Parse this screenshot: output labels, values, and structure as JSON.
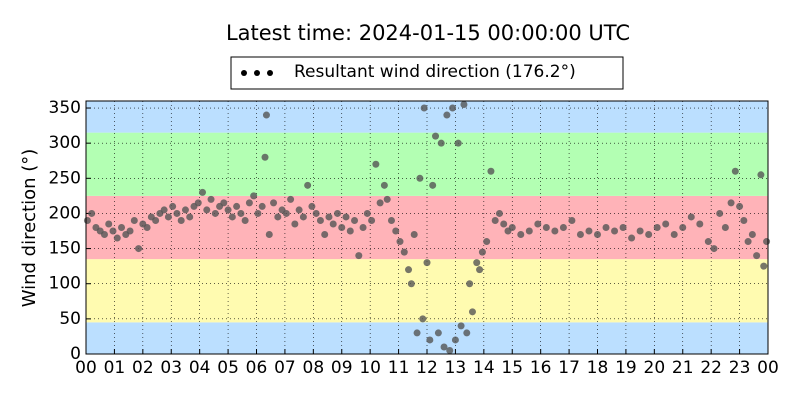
{
  "chart_data": {
    "type": "scatter",
    "title": "Latest time: 2024-01-15 00:00:00 UTC",
    "ylabel": "Wind direction (°)",
    "xlim": [
      0,
      24
    ],
    "ylim": [
      0,
      360
    ],
    "xticks": [
      {
        "value": 0,
        "label": "00"
      },
      {
        "value": 1,
        "label": "01"
      },
      {
        "value": 2,
        "label": "02"
      },
      {
        "value": 3,
        "label": "03"
      },
      {
        "value": 4,
        "label": "04"
      },
      {
        "value": 5,
        "label": "05"
      },
      {
        "value": 6,
        "label": "06"
      },
      {
        "value": 7,
        "label": "07"
      },
      {
        "value": 8,
        "label": "08"
      },
      {
        "value": 9,
        "label": "09"
      },
      {
        "value": 10,
        "label": "10"
      },
      {
        "value": 11,
        "label": "11"
      },
      {
        "value": 12,
        "label": "12"
      },
      {
        "value": 13,
        "label": "13"
      },
      {
        "value": 14,
        "label": "14"
      },
      {
        "value": 15,
        "label": "15"
      },
      {
        "value": 16,
        "label": "16"
      },
      {
        "value": 17,
        "label": "17"
      },
      {
        "value": 18,
        "label": "18"
      },
      {
        "value": 19,
        "label": "19"
      },
      {
        "value": 20,
        "label": "20"
      },
      {
        "value": 21,
        "label": "21"
      },
      {
        "value": 22,
        "label": "22"
      },
      {
        "value": 23,
        "label": "23"
      },
      {
        "value": 24,
        "label": "00"
      }
    ],
    "yticks": [
      0,
      50,
      100,
      150,
      200,
      250,
      300,
      350
    ],
    "grid": true,
    "bands": [
      {
        "from": 0,
        "to": 45,
        "color": "#bbdfff"
      },
      {
        "from": 45,
        "to": 135,
        "color": "#fffbb0"
      },
      {
        "from": 135,
        "to": 225,
        "color": "#ffb3b8"
      },
      {
        "from": 225,
        "to": 315,
        "color": "#b3ffb3"
      },
      {
        "from": 315,
        "to": 360,
        "color": "#bbdfff"
      }
    ],
    "series": [
      {
        "name": "Resultant wind direction (176.2°)",
        "color": "#555555",
        "x": [
          0.05,
          0.2,
          0.35,
          0.5,
          0.65,
          0.8,
          0.95,
          1.1,
          1.25,
          1.4,
          1.55,
          1.7,
          1.85,
          2.0,
          2.15,
          2.3,
          2.45,
          2.6,
          2.75,
          2.9,
          3.05,
          3.2,
          3.35,
          3.5,
          3.65,
          3.8,
          3.95,
          4.1,
          4.25,
          4.4,
          4.55,
          4.7,
          4.85,
          5.0,
          5.15,
          5.3,
          5.45,
          5.6,
          5.75,
          5.9,
          6.05,
          6.2,
          6.3,
          6.35,
          6.45,
          6.6,
          6.75,
          6.9,
          7.05,
          7.2,
          7.35,
          7.5,
          7.65,
          7.8,
          7.95,
          8.1,
          8.25,
          8.4,
          8.55,
          8.7,
          8.85,
          9.0,
          9.15,
          9.3,
          9.45,
          9.6,
          9.75,
          9.9,
          10.05,
          10.2,
          10.35,
          10.5,
          10.6,
          10.75,
          10.9,
          11.05,
          11.2,
          11.35,
          11.45,
          11.55,
          11.65,
          11.75,
          11.85,
          11.9,
          12.0,
          12.1,
          12.2,
          12.3,
          12.4,
          12.5,
          12.6,
          12.7,
          12.8,
          12.9,
          13.0,
          13.1,
          13.2,
          13.3,
          13.4,
          13.5,
          13.6,
          13.75,
          13.85,
          13.95,
          14.1,
          14.25,
          14.4,
          14.55,
          14.7,
          14.85,
          15.0,
          15.3,
          15.6,
          15.9,
          16.2,
          16.5,
          16.8,
          17.1,
          17.4,
          17.7,
          18.0,
          18.3,
          18.6,
          18.9,
          19.2,
          19.5,
          19.8,
          20.1,
          20.4,
          20.7,
          21.0,
          21.3,
          21.6,
          21.9,
          22.1,
          22.3,
          22.5,
          22.7,
          22.85,
          23.0,
          23.15,
          23.3,
          23.45,
          23.6,
          23.75,
          23.85,
          23.95
        ],
        "values": [
          190,
          200,
          180,
          175,
          170,
          185,
          175,
          165,
          180,
          170,
          175,
          190,
          150,
          185,
          180,
          195,
          190,
          200,
          205,
          195,
          210,
          200,
          190,
          205,
          195,
          210,
          215,
          230,
          205,
          220,
          200,
          210,
          215,
          205,
          195,
          210,
          200,
          190,
          215,
          225,
          200,
          210,
          280,
          340,
          170,
          215,
          195,
          205,
          200,
          220,
          185,
          205,
          195,
          240,
          210,
          200,
          190,
          170,
          195,
          185,
          200,
          180,
          195,
          175,
          190,
          140,
          180,
          200,
          190,
          270,
          215,
          240,
          220,
          190,
          175,
          160,
          145,
          120,
          100,
          170,
          30,
          250,
          50,
          350,
          130,
          20,
          240,
          310,
          30,
          300,
          10,
          340,
          5,
          350,
          20,
          300,
          40,
          355,
          30,
          100,
          60,
          130,
          120,
          145,
          160,
          260,
          190,
          200,
          185,
          175,
          180,
          170,
          175,
          185,
          180,
          175,
          180,
          190,
          170,
          175,
          170,
          180,
          175,
          180,
          165,
          175,
          170,
          180,
          185,
          170,
          180,
          195,
          185,
          160,
          150,
          200,
          180,
          215,
          260,
          210,
          190,
          160,
          170,
          140,
          255,
          125,
          160
        ]
      }
    ]
  }
}
